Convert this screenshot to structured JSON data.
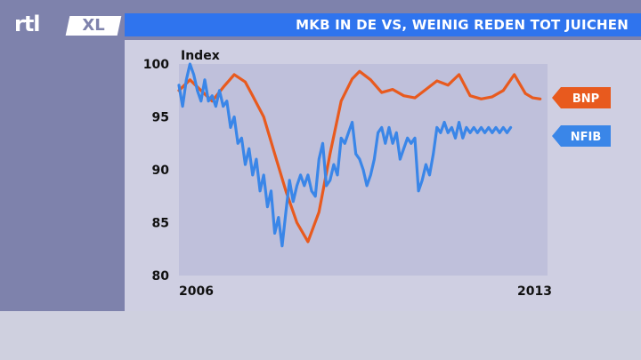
{
  "channel": {
    "logo_text": "rtl",
    "logo_badge": "XL"
  },
  "header": {
    "title": "MKB IN DE VS, WEINIG REDEN TOT JUICHEN"
  },
  "chart_data": {
    "type": "line",
    "ylabel": "Index",
    "ylim": [
      80,
      100
    ],
    "yticks": [
      80,
      85,
      90,
      95,
      100
    ],
    "xlim": [
      0,
      100
    ],
    "x_tick_labels": [
      "2006",
      "2013"
    ],
    "legend_position": "right",
    "series": [
      {
        "name": "BNP",
        "color": "#e85a1e",
        "x": [
          0,
          3,
          6,
          9,
          12,
          15,
          18,
          20,
          23,
          26,
          29,
          32,
          35,
          38,
          41,
          44,
          47,
          49,
          52,
          55,
          58,
          61,
          64,
          67,
          70,
          73,
          76,
          79,
          82,
          85,
          88,
          91,
          94,
          96,
          98
        ],
        "y": [
          97.5,
          98.5,
          97.5,
          96.5,
          97.8,
          99.0,
          98.3,
          97.0,
          95.0,
          91.5,
          88.0,
          85.0,
          83.2,
          86.0,
          91.5,
          96.5,
          98.6,
          99.3,
          98.5,
          97.3,
          97.6,
          97.0,
          96.8,
          97.6,
          98.4,
          98.0,
          99.0,
          97.0,
          96.7,
          96.9,
          97.5,
          99.0,
          97.2,
          96.8,
          96.7
        ]
      },
      {
        "name": "NFIB",
        "color": "#3a86e8",
        "x": [
          0,
          1,
          2,
          3,
          4,
          5,
          6,
          7,
          8,
          9,
          10,
          11,
          12,
          13,
          14,
          15,
          16,
          17,
          18,
          19,
          20,
          21,
          22,
          23,
          24,
          25,
          26,
          27,
          28,
          29,
          30,
          31,
          32,
          33,
          34,
          35,
          36,
          37,
          38,
          39,
          40,
          41,
          42,
          43,
          44,
          45,
          46,
          47,
          48,
          49,
          50,
          51,
          52,
          53,
          54,
          55,
          56,
          57,
          58,
          59,
          60,
          61,
          62,
          63,
          64,
          65,
          66,
          67,
          68,
          69,
          70,
          71,
          72,
          73,
          74,
          75,
          76,
          77,
          78,
          79,
          80,
          81,
          82,
          83,
          84,
          85,
          86,
          87,
          88,
          89,
          90
        ],
        "y": [
          98.0,
          96.0,
          98.5,
          100.0,
          99.0,
          97.5,
          96.5,
          98.5,
          96.5,
          97.0,
          96.0,
          97.5,
          96.0,
          96.5,
          94.0,
          95.0,
          92.5,
          93.0,
          90.5,
          92.0,
          89.5,
          91.0,
          88.0,
          89.5,
          86.5,
          88.0,
          84.0,
          85.5,
          82.8,
          86.0,
          89.0,
          87.0,
          88.5,
          89.5,
          88.5,
          89.5,
          88.0,
          87.5,
          91.0,
          92.5,
          88.5,
          89.0,
          90.5,
          89.5,
          93.0,
          92.5,
          93.5,
          94.5,
          91.5,
          91.0,
          90.0,
          88.5,
          89.5,
          91.0,
          93.5,
          94.0,
          92.5,
          94.0,
          92.5,
          93.5,
          91.0,
          92.0,
          93.0,
          92.5,
          93.0,
          88.0,
          89.0,
          90.5,
          89.5,
          91.5,
          94.0,
          93.5,
          94.5,
          93.5,
          94.0,
          93.0,
          94.5,
          93.0,
          94.0,
          93.5,
          94.0,
          93.5,
          94.0,
          93.5,
          94.0,
          93.5,
          94.0,
          93.5,
          94.0,
          93.5,
          94.0
        ]
      }
    ]
  }
}
